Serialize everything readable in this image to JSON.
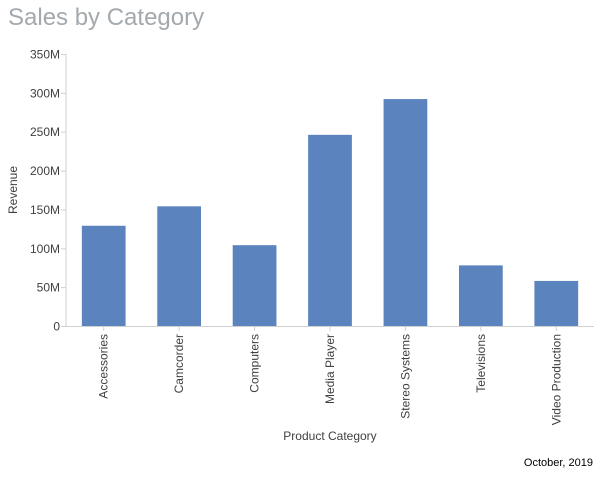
{
  "chart_data": {
    "type": "bar",
    "title": "Sales by Category",
    "xlabel": "Product Category",
    "ylabel": "Revenue",
    "categories": [
      "Accessories",
      "Camcorder",
      "Computers",
      "Media Player",
      "Stereo Systems",
      "Televisions",
      "Video Production"
    ],
    "values": [
      129000000,
      154000000,
      104000000,
      246000000,
      292000000,
      78000000,
      58000000
    ],
    "ylim": [
      0,
      350000000
    ],
    "yticks": [
      0,
      50000000,
      100000000,
      150000000,
      200000000,
      250000000,
      300000000,
      350000000
    ],
    "ytick_labels": [
      "0",
      "50M",
      "100M",
      "150M",
      "200M",
      "250M",
      "300M",
      "350M"
    ],
    "grid": false,
    "legend": "none",
    "bar_color": "#5b84be"
  },
  "footer": {
    "date": "October, 2019"
  },
  "colors": {
    "title": "#a4a9ad",
    "axis_text": "#404040",
    "axis_line": "#d0d0d0"
  }
}
